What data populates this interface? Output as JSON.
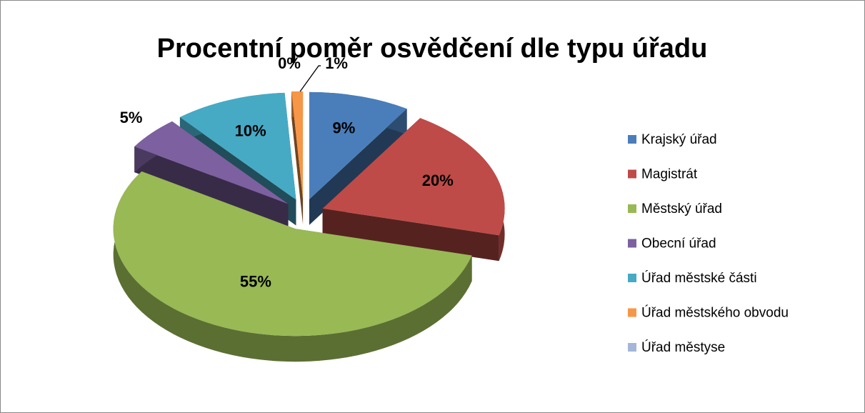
{
  "chart_data": {
    "type": "pie",
    "title": "Procentní poměr osvědčení dle typu úřadu",
    "categories": [
      "Krajský úřad",
      "Magistrát",
      "Městský úřad",
      "Obecní úřad",
      "Úřad městské části",
      "Úřad městského obvodu",
      "Úřad městyse"
    ],
    "values": [
      9,
      20,
      55,
      5,
      10,
      1,
      0
    ],
    "value_labels": [
      "9%",
      "20%",
      "55%",
      "5%",
      "10%",
      "1%",
      "0%"
    ],
    "colors": [
      "#4a7ebb",
      "#be4b48",
      "#98b954",
      "#7d60a0",
      "#46aac5",
      "#f79646",
      "#a5b6d8"
    ],
    "legend": "right"
  }
}
